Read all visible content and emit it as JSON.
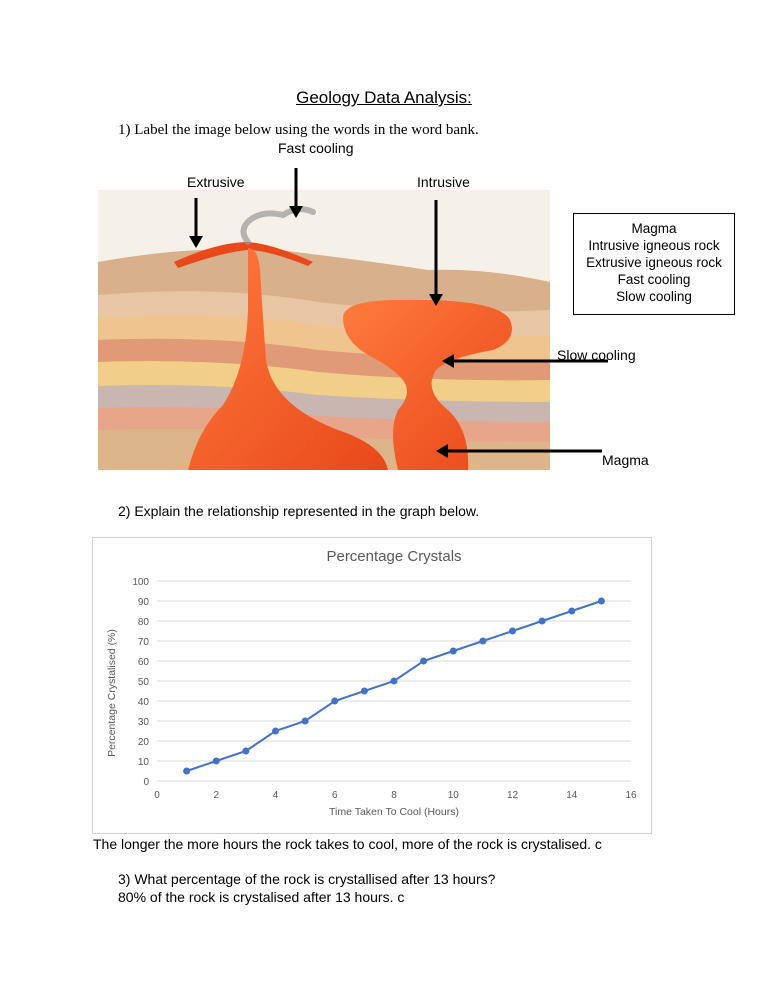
{
  "heading": "Geology Data Analysis:",
  "question1": "1)  Label the image below using the words in the word bank.",
  "diagram_labels": {
    "fast_cooling": "Fast cooling",
    "extrusive": "Extrusive",
    "intrusive": "Intrusive",
    "slow_cooling": "Slow  cooling",
    "magma": "Magma"
  },
  "word_bank": [
    "Magma",
    "Intrusive igneous rock",
    "Extrusive igneous rock",
    "Fast cooling",
    "Slow cooling"
  ],
  "question2": "2)  Explain the relationship represented in the graph below.",
  "answer2": "The longer the more hours the rock takes to cool, more of the rock is crystalised.  c",
  "question3": "3)  What percentage of the rock is crystallised after 13 hours?",
  "answer3": "80% of the rock is crystalised after 13 hours. c",
  "colors": {
    "series": "#4472C4",
    "lava": "#F4511E",
    "grid": "#D9D9D9"
  },
  "chart_data": {
    "type": "line",
    "title": "Percentage Crystals",
    "xlabel": "Time Taken To Cool (Hours)",
    "ylabel": "Percentage Crystalised (%)",
    "xlim": [
      0,
      16
    ],
    "ylim": [
      0,
      100
    ],
    "xticks": [
      0,
      2,
      4,
      6,
      8,
      10,
      12,
      14,
      16
    ],
    "yticks": [
      0,
      10,
      20,
      30,
      40,
      50,
      60,
      70,
      80,
      90,
      100
    ],
    "grid": true,
    "series": [
      {
        "x": [
          1,
          2,
          3,
          4,
          5,
          6,
          7,
          8,
          9,
          10,
          11,
          12,
          13,
          14,
          15
        ],
        "values": [
          5,
          10,
          15,
          25,
          30,
          40,
          45,
          50,
          60,
          65,
          70,
          75,
          80,
          85,
          90
        ]
      }
    ]
  }
}
